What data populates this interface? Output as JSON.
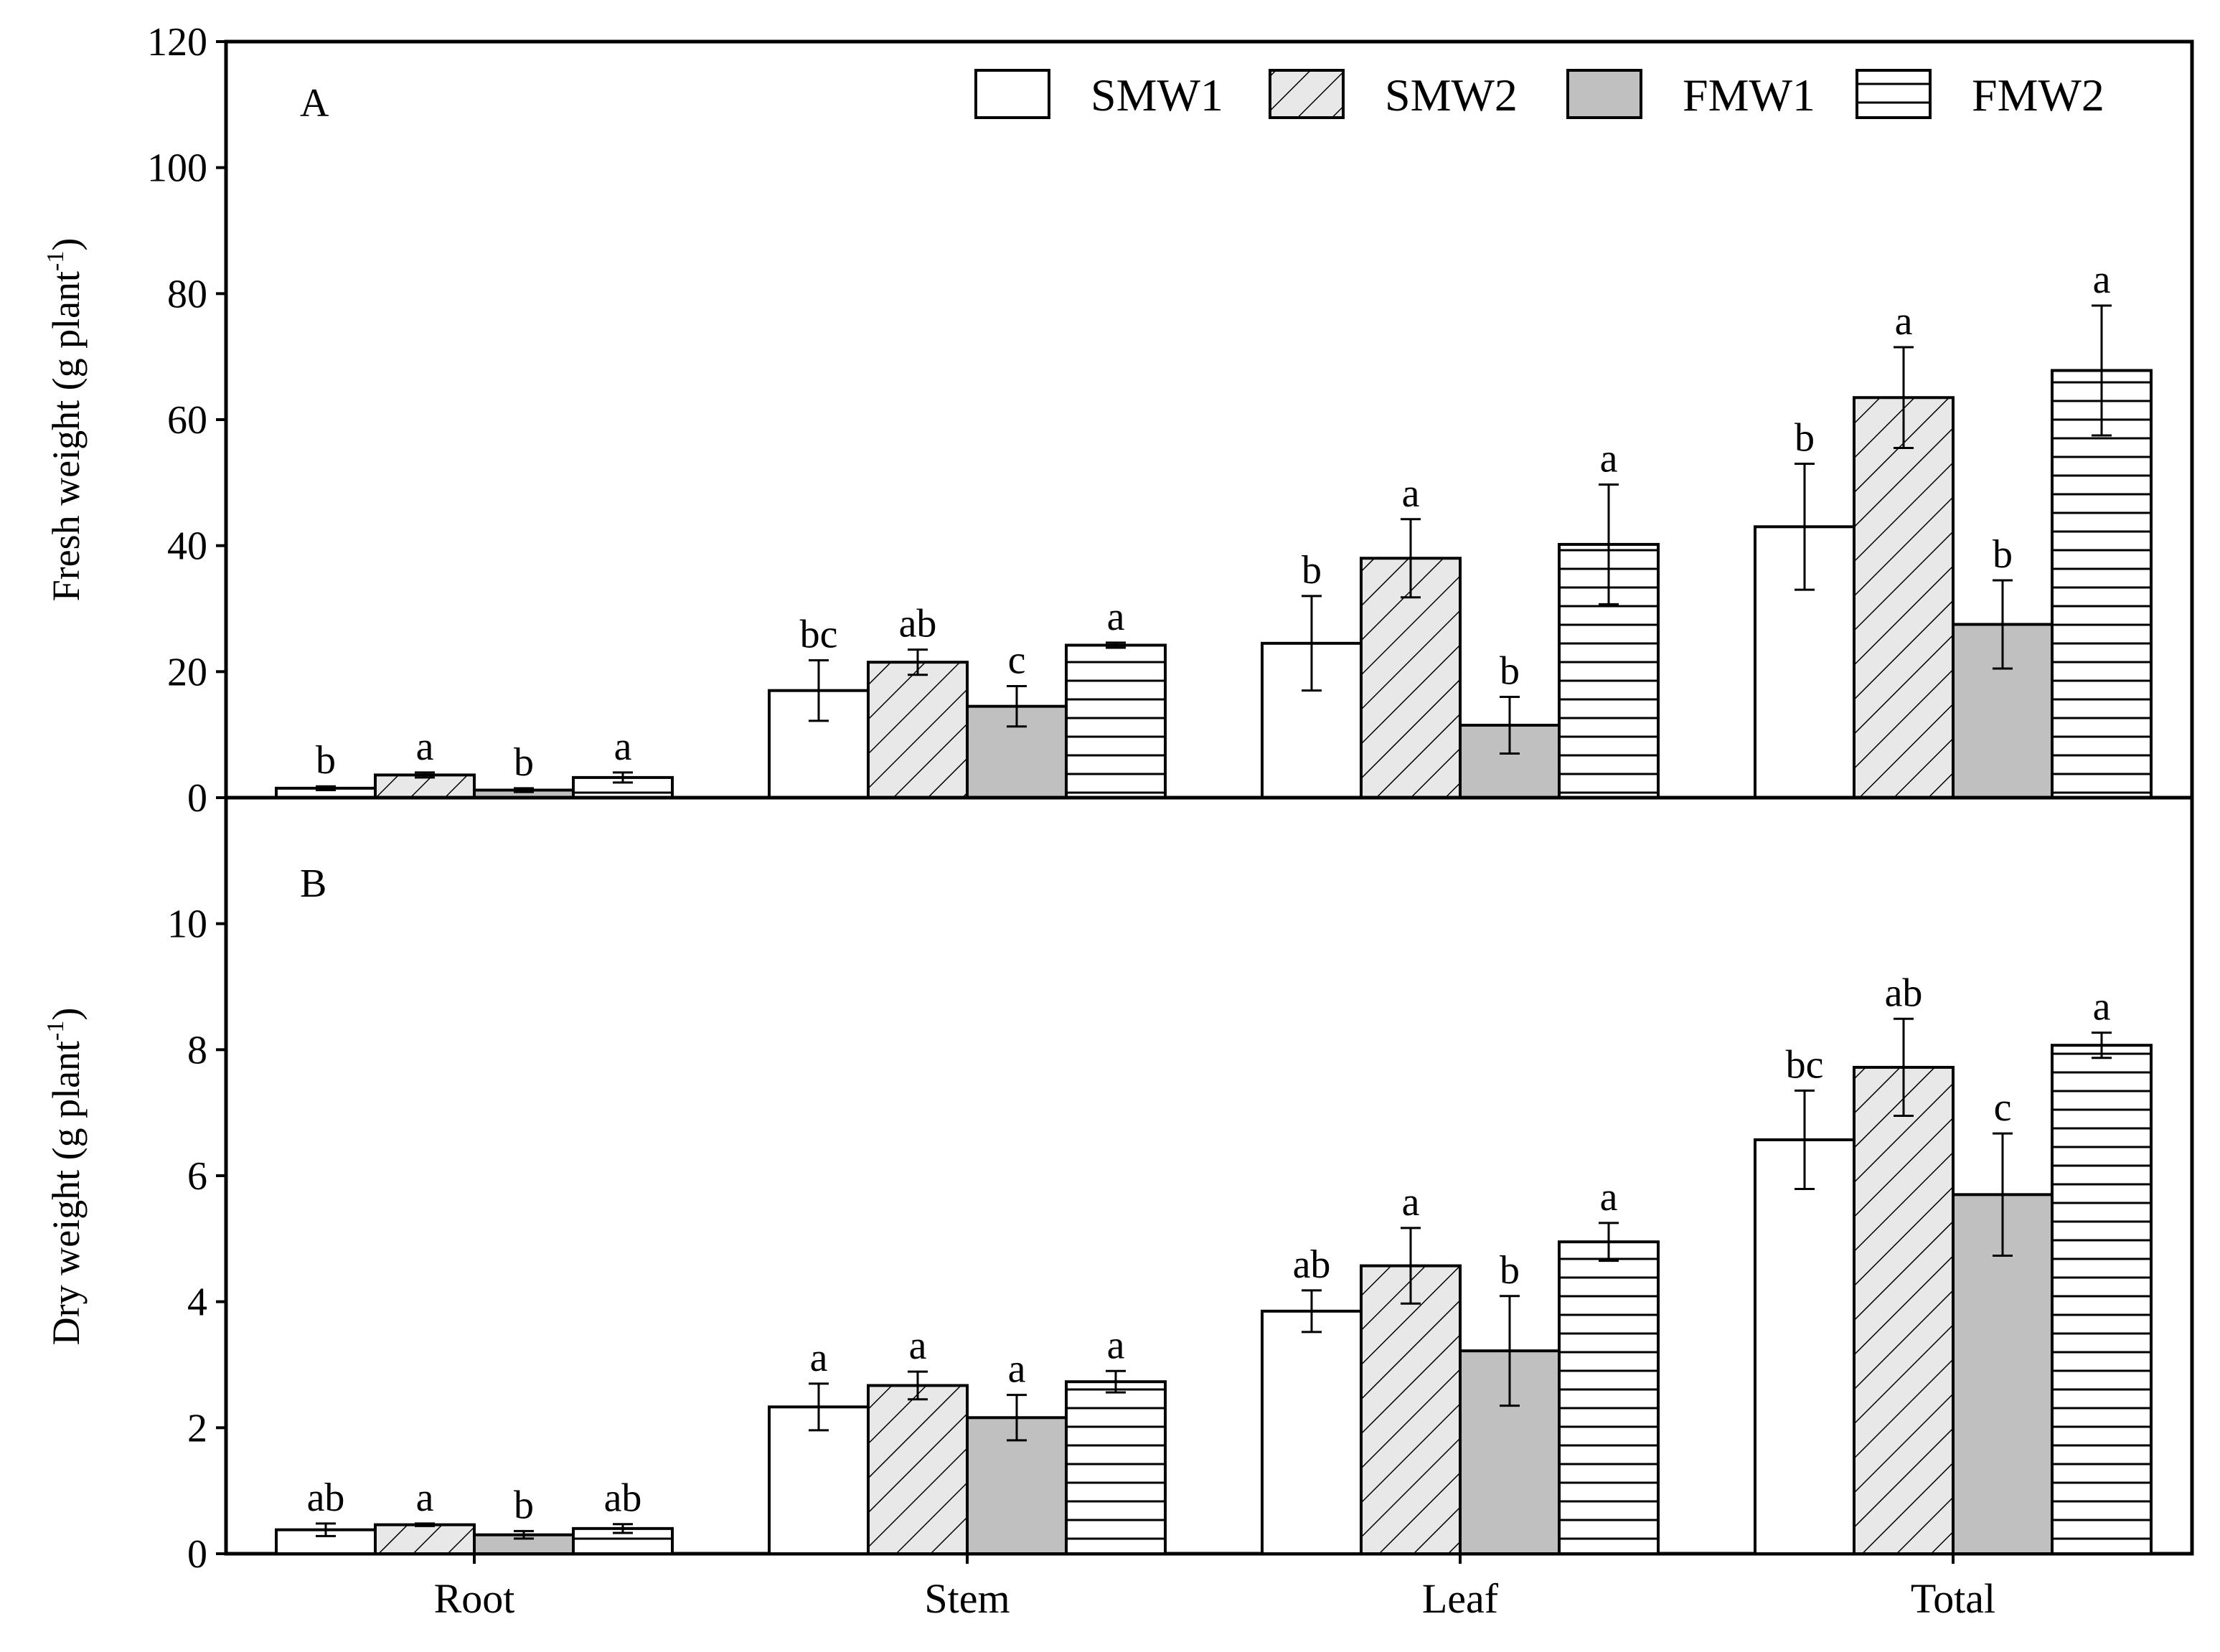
{
  "colors": {
    "SMW1": "#ffffff",
    "SMW2": "#e8e8e8",
    "FMW1": "#c0c0c0",
    "FMW2": "#ffffff",
    "stroke": "#000000"
  },
  "legend": {
    "placement": "top-right",
    "items": [
      {
        "name": "SMW1",
        "pattern": "none"
      },
      {
        "name": "SMW2",
        "pattern": "diagonal-hatch"
      },
      {
        "name": "FMW1",
        "pattern": "solid-gray"
      },
      {
        "name": "FMW2",
        "pattern": "horizontal-lines"
      }
    ]
  },
  "chart_data": [
    {
      "type": "bar",
      "panel_label": "A",
      "ylabel_main": "Fresh weight (g plant",
      "ylabel_sup": "-1",
      "ylabel_close": ")",
      "ylim": [
        0,
        120
      ],
      "yticks": [
        "0",
        "20",
        "40",
        "60",
        "80",
        "100",
        "120"
      ],
      "categories": [
        "Root",
        "Stem",
        "Leaf",
        "Total"
      ],
      "series": [
        {
          "name": "SMW1",
          "values": [
            1.5,
            17,
            24.5,
            43
          ],
          "errors": [
            0.3,
            4.8,
            7.5,
            10
          ],
          "letters": [
            "b",
            "bc",
            "b",
            "b"
          ]
        },
        {
          "name": "SMW2",
          "values": [
            3.6,
            21.5,
            38,
            63.5
          ],
          "errors": [
            0.4,
            2,
            6.2,
            8
          ],
          "letters": [
            "a",
            "ab",
            "a",
            "a"
          ]
        },
        {
          "name": "FMW1",
          "values": [
            1.2,
            14.5,
            11.5,
            27.5
          ],
          "errors": [
            0.3,
            3.2,
            4.5,
            7
          ],
          "letters": [
            "b",
            "c",
            "b",
            "b"
          ]
        },
        {
          "name": "FMW2",
          "values": [
            3.2,
            24.2,
            40.2,
            67.8
          ],
          "errors": [
            0.8,
            0.4,
            9.5,
            10.3
          ],
          "letters": [
            "a",
            "a",
            "a",
            "a"
          ]
        }
      ]
    },
    {
      "type": "bar",
      "panel_label": "B",
      "ylabel_main": "Dry weight (g plant",
      "ylabel_sup": "-1",
      "ylabel_close": ")",
      "ylim": [
        0,
        12
      ],
      "yticks": [
        "0",
        "2",
        "4",
        "6",
        "8",
        "10"
      ],
      "categories": [
        "Root",
        "Stem",
        "Leaf",
        "Total"
      ],
      "series": [
        {
          "name": "SMW1",
          "values": [
            0.38,
            2.33,
            3.85,
            6.57
          ],
          "errors": [
            0.1,
            0.37,
            0.33,
            0.78
          ],
          "letters": [
            "ab",
            "a",
            "ab",
            "bc"
          ]
        },
        {
          "name": "SMW2",
          "values": [
            0.46,
            2.67,
            4.57,
            7.72
          ],
          "errors": [
            0.02,
            0.22,
            0.6,
            0.77
          ],
          "letters": [
            "a",
            "a",
            "a",
            "ab"
          ]
        },
        {
          "name": "FMW1",
          "values": [
            0.3,
            2.16,
            3.22,
            5.7
          ],
          "errors": [
            0.06,
            0.36,
            0.87,
            0.97
          ],
          "letters": [
            "b",
            "a",
            "b",
            "c"
          ]
        },
        {
          "name": "FMW2",
          "values": [
            0.4,
            2.73,
            4.95,
            8.07
          ],
          "errors": [
            0.07,
            0.17,
            0.3,
            0.2
          ],
          "letters": [
            "ab",
            "a",
            "a",
            "a"
          ]
        }
      ]
    }
  ]
}
